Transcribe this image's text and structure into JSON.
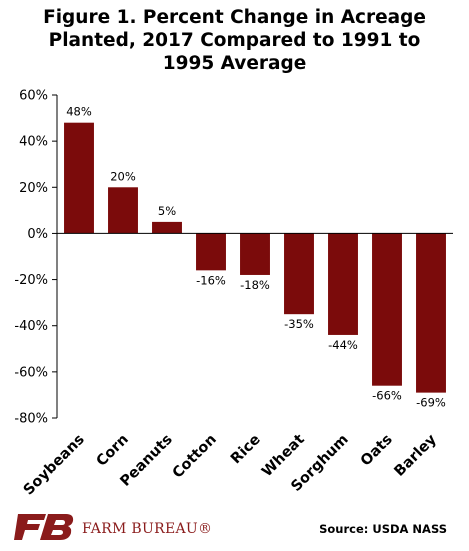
{
  "chart_data": {
    "type": "bar",
    "title": "Figure 1. Percent Change in Acreage Planted, 2017 Compared to 1991 to 1995 Average",
    "categories": [
      "Soybeans",
      "Corn",
      "Peanuts",
      "Cotton",
      "Rice",
      "Wheat",
      "Sorghum",
      "Oats",
      "Barley"
    ],
    "values": [
      48,
      20,
      5,
      -16,
      -18,
      -35,
      -44,
      -66,
      -69
    ],
    "data_labels": [
      "48%",
      "20%",
      "5%",
      "-16%",
      "-18%",
      "-35%",
      "-44%",
      "-66%",
      "-69%"
    ],
    "ylim": [
      -80,
      60
    ],
    "yticks": [
      -80,
      -60,
      -40,
      -20,
      0,
      20,
      40,
      60
    ],
    "ytick_labels": [
      "-80%",
      "-60%",
      "-40%",
      "-20%",
      "0%",
      "20%",
      "40%",
      "60%"
    ],
    "grid": false,
    "legend": "none",
    "bar_color": "#7b0b0b"
  },
  "footer": {
    "brand": "FARM BUREAU®",
    "source": "Source: USDA NASS",
    "brand_color": "#8a1b1b"
  }
}
